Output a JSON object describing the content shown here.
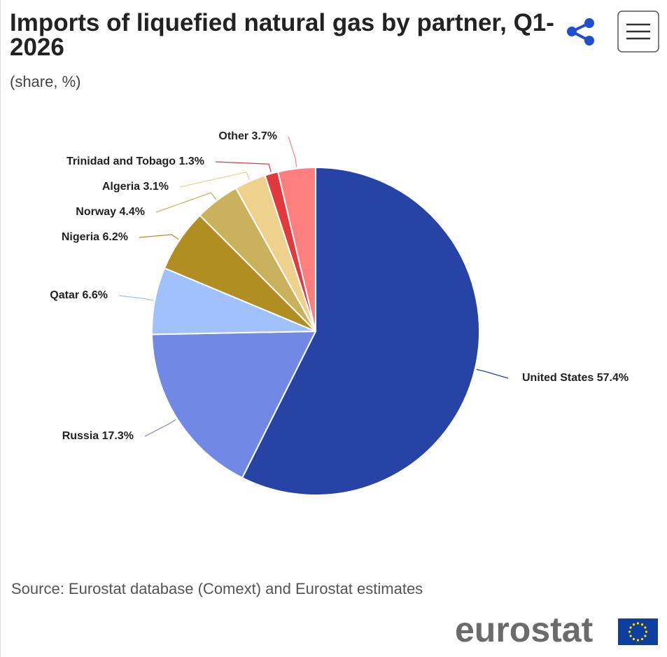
{
  "chart_data": {
    "type": "pie",
    "title": "Imports of liquefied natural gas by partner, Q1-2026",
    "subtitle": "(share, %)",
    "categories": [
      "United States",
      "Russia",
      "Qatar",
      "Nigeria",
      "Norway",
      "Algeria",
      "Trinidad and Tobago",
      "Other"
    ],
    "values": [
      57.4,
      17.3,
      6.6,
      6.2,
      4.4,
      3.1,
      1.3,
      3.7
    ],
    "value_labels": [
      "57.4%",
      "17.3%",
      "6.6%",
      "6.2%",
      "4.4%",
      "3.1%",
      "1.3%",
      "3.7%"
    ],
    "colors": [
      "#2743a6",
      "#7189e4",
      "#a0c1fa",
      "#b08e22",
      "#c9b15e",
      "#efd18e",
      "#e0393e",
      "#ff7f7f"
    ],
    "source": "Source: Eurostat database (Comext) and Eurostat estimates",
    "logo": "eurostat"
  }
}
